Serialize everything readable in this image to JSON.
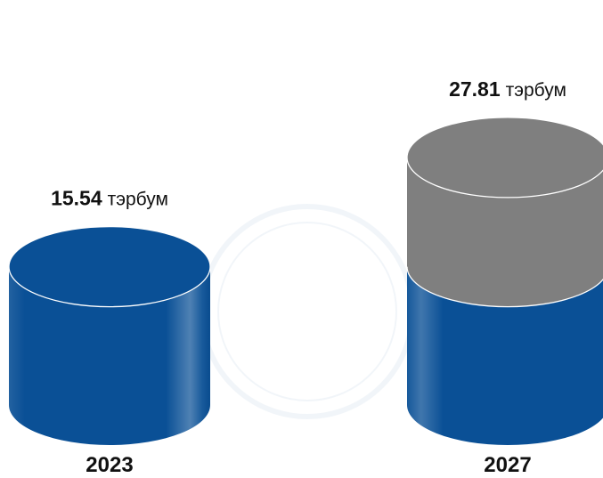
{
  "chart_data": {
    "type": "bar",
    "categories": [
      "2023",
      "2027"
    ],
    "values": [
      15.54,
      27.81
    ],
    "unit": "тэрбум",
    "value_labels": [
      "15.54",
      "27.81"
    ],
    "ylim": [
      0,
      30
    ],
    "grid": false,
    "colors": {
      "base": "#0a5096",
      "growth": "#7f7f7f"
    },
    "shape": "cylinder"
  }
}
